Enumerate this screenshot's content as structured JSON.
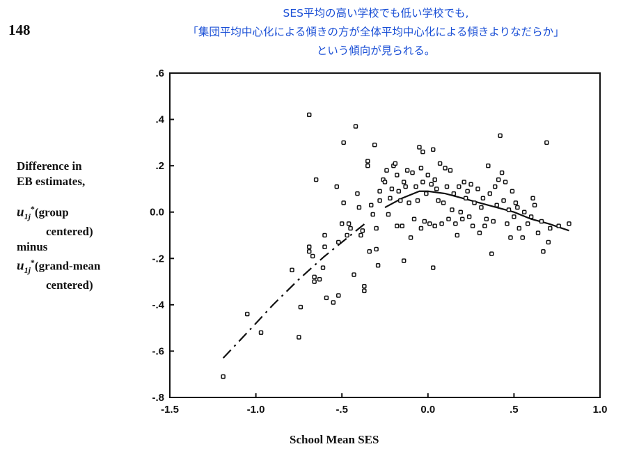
{
  "annotation": {
    "line1": "SES平均の高い学校でも低い学校でも,",
    "line2": "「集団平均中心化による傾きの方が全体平均中心化による傾きよりなだらか」",
    "line3": "という傾向が見られる。"
  },
  "page_number": "148",
  "ylabel": {
    "line1": "Difference in",
    "line2": "EB estimates,",
    "u_sym": "u",
    "sub": "1j",
    "sup": "*",
    "group": "(group",
    "group_centered": "centered)",
    "minus": "minus",
    "grand": "(grand-mean",
    "grand_centered": "centered)"
  },
  "xlabel": "School Mean SES",
  "chart_data": {
    "type": "scatter",
    "title": "",
    "xlabel": "School Mean SES",
    "ylabel": "Difference in EB estimates, u1j* (group centered) minus u1j* (grand-mean centered)",
    "xlim": [
      -1.5,
      1.0
    ],
    "ylim": [
      -0.8,
      0.6
    ],
    "x_ticks": [
      -1.5,
      -1.0,
      -0.5,
      0.0,
      0.5,
      1.0
    ],
    "x_tick_labels": [
      "-1.5",
      "-1.0",
      "-.5",
      "0.0",
      ".5",
      "1.0"
    ],
    "y_ticks": [
      -0.8,
      -0.6,
      -0.4,
      -0.2,
      0.0,
      0.2,
      0.4,
      0.6
    ],
    "y_tick_labels": [
      "-.8",
      "-.6",
      "-.4",
      "-.2",
      "0.0",
      ".2",
      ".4",
      ".6"
    ],
    "grid": false,
    "legend": "none",
    "points": [
      [
        -1.19,
        -0.71
      ],
      [
        -1.05,
        -0.44
      ],
      [
        -0.97,
        -0.52
      ],
      [
        -0.79,
        -0.25
      ],
      [
        -0.75,
        -0.54
      ],
      [
        -0.74,
        -0.41
      ],
      [
        -0.69,
        0.42
      ],
      [
        -0.69,
        -0.15
      ],
      [
        -0.69,
        -0.17
      ],
      [
        -0.67,
        -0.19
      ],
      [
        -0.66,
        -0.28
      ],
      [
        -0.66,
        -0.3
      ],
      [
        -0.65,
        0.14
      ],
      [
        -0.63,
        -0.29
      ],
      [
        -0.61,
        -0.24
      ],
      [
        -0.6,
        -0.15
      ],
      [
        -0.6,
        -0.1
      ],
      [
        -0.59,
        -0.37
      ],
      [
        -0.55,
        -0.39
      ],
      [
        -0.53,
        0.11
      ],
      [
        -0.52,
        -0.36
      ],
      [
        -0.52,
        -0.13
      ],
      [
        -0.5,
        -0.05
      ],
      [
        -0.49,
        0.04
      ],
      [
        -0.49,
        0.3
      ],
      [
        -0.47,
        -0.1
      ],
      [
        -0.46,
        -0.05
      ],
      [
        -0.45,
        -0.07
      ],
      [
        -0.43,
        -0.27
      ],
      [
        -0.42,
        0.37
      ],
      [
        -0.41,
        0.08
      ],
      [
        -0.4,
        0.02
      ],
      [
        -0.39,
        -0.1
      ],
      [
        -0.38,
        -0.08
      ],
      [
        -0.37,
        -0.32
      ],
      [
        -0.37,
        -0.34
      ],
      [
        -0.35,
        0.2
      ],
      [
        -0.35,
        0.22
      ],
      [
        -0.34,
        -0.17
      ],
      [
        -0.33,
        0.03
      ],
      [
        -0.32,
        -0.01
      ],
      [
        -0.31,
        0.29
      ],
      [
        -0.3,
        -0.07
      ],
      [
        -0.3,
        -0.16
      ],
      [
        -0.29,
        -0.23
      ],
      [
        -0.28,
        0.05
      ],
      [
        -0.28,
        0.09
      ],
      [
        -0.26,
        0.14
      ],
      [
        -0.25,
        0.13
      ],
      [
        -0.24,
        0.18
      ],
      [
        -0.23,
        -0.01
      ],
      [
        -0.22,
        0.06
      ],
      [
        -0.21,
        0.1
      ],
      [
        -0.2,
        0.2
      ],
      [
        -0.19,
        0.21
      ],
      [
        -0.18,
        0.16
      ],
      [
        -0.18,
        -0.06
      ],
      [
        -0.17,
        0.09
      ],
      [
        -0.16,
        0.05
      ],
      [
        -0.15,
        -0.06
      ],
      [
        -0.14,
        -0.21
      ],
      [
        -0.14,
        0.13
      ],
      [
        -0.13,
        0.11
      ],
      [
        -0.12,
        0.18
      ],
      [
        -0.11,
        0.04
      ],
      [
        -0.1,
        -0.11
      ],
      [
        -0.09,
        0.17
      ],
      [
        -0.08,
        -0.03
      ],
      [
        -0.07,
        0.11
      ],
      [
        -0.06,
        0.05
      ],
      [
        -0.05,
        0.28
      ],
      [
        -0.04,
        0.19
      ],
      [
        -0.04,
        -0.07
      ],
      [
        -0.03,
        0.26
      ],
      [
        -0.03,
        0.13
      ],
      [
        -0.02,
        -0.04
      ],
      [
        -0.01,
        0.08
      ],
      [
        0.0,
        0.16
      ],
      [
        0.01,
        -0.05
      ],
      [
        0.02,
        0.12
      ],
      [
        0.03,
        0.27
      ],
      [
        0.03,
        -0.24
      ],
      [
        0.04,
        0.14
      ],
      [
        0.04,
        -0.06
      ],
      [
        0.05,
        0.1
      ],
      [
        0.06,
        0.05
      ],
      [
        0.07,
        0.21
      ],
      [
        0.08,
        -0.05
      ],
      [
        0.09,
        0.04
      ],
      [
        0.1,
        0.19
      ],
      [
        0.11,
        0.11
      ],
      [
        0.12,
        -0.03
      ],
      [
        0.13,
        0.18
      ],
      [
        0.14,
        0.01
      ],
      [
        0.15,
        0.08
      ],
      [
        0.16,
        -0.05
      ],
      [
        0.17,
        -0.1
      ],
      [
        0.18,
        0.11
      ],
      [
        0.19,
        0.0
      ],
      [
        0.2,
        -0.03
      ],
      [
        0.21,
        0.13
      ],
      [
        0.22,
        0.06
      ],
      [
        0.23,
        0.09
      ],
      [
        0.24,
        -0.02
      ],
      [
        0.25,
        0.12
      ],
      [
        0.26,
        -0.06
      ],
      [
        0.27,
        0.04
      ],
      [
        0.29,
        0.1
      ],
      [
        0.3,
        -0.09
      ],
      [
        0.31,
        0.02
      ],
      [
        0.32,
        0.06
      ],
      [
        0.33,
        -0.06
      ],
      [
        0.34,
        -0.03
      ],
      [
        0.35,
        0.2
      ],
      [
        0.36,
        0.08
      ],
      [
        0.37,
        -0.18
      ],
      [
        0.38,
        -0.04
      ],
      [
        0.39,
        0.11
      ],
      [
        0.4,
        0.03
      ],
      [
        0.41,
        0.14
      ],
      [
        0.42,
        0.33
      ],
      [
        0.43,
        0.17
      ],
      [
        0.44,
        0.05
      ],
      [
        0.45,
        0.13
      ],
      [
        0.46,
        -0.05
      ],
      [
        0.47,
        0.01
      ],
      [
        0.48,
        -0.11
      ],
      [
        0.49,
        0.09
      ],
      [
        0.5,
        -0.02
      ],
      [
        0.51,
        0.04
      ],
      [
        0.52,
        0.02
      ],
      [
        0.53,
        -0.07
      ],
      [
        0.55,
        -0.11
      ],
      [
        0.56,
        0.0
      ],
      [
        0.58,
        -0.05
      ],
      [
        0.6,
        -0.02
      ],
      [
        0.61,
        0.06
      ],
      [
        0.62,
        0.03
      ],
      [
        0.64,
        -0.09
      ],
      [
        0.66,
        -0.04
      ],
      [
        0.67,
        -0.17
      ],
      [
        0.69,
        0.3
      ],
      [
        0.7,
        -0.13
      ],
      [
        0.71,
        -0.07
      ],
      [
        0.76,
        -0.06
      ],
      [
        0.82,
        -0.05
      ]
    ],
    "smooth_curve": {
      "x": [
        -1.19,
        -1.05,
        -0.9,
        -0.75,
        -0.6,
        -0.45,
        -0.35,
        -0.25,
        -0.15,
        -0.05,
        0.0,
        0.1,
        0.2,
        0.3,
        0.4,
        0.5,
        0.6,
        0.7,
        0.82
      ],
      "y": [
        -0.63,
        -0.52,
        -0.4,
        -0.29,
        -0.19,
        -0.1,
        -0.04,
        0.02,
        0.06,
        0.09,
        0.09,
        0.08,
        0.06,
        0.04,
        0.02,
        0.0,
        -0.03,
        -0.05,
        -0.08
      ]
    }
  }
}
